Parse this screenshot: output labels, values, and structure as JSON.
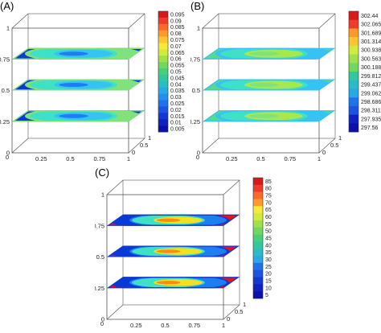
{
  "panels": [
    {
      "label": "(A)",
      "colorbar": [
        "0.095",
        "0.09",
        "0.085",
        "0.08",
        "0.075",
        "0.07",
        "0.065",
        "0.06",
        "0.055",
        "0.05",
        "0.045",
        "0.04",
        "0.035",
        "0.03",
        "0.025",
        "0.02",
        "0.015",
        "0.01",
        "0.005"
      ],
      "z_ticks": [
        "1",
        "0.75",
        "0.5",
        "0.25",
        "0"
      ],
      "x_ticks": [
        "0",
        "0.25",
        "0.5",
        "0.75",
        "1"
      ],
      "y_ticks": [
        "0",
        "0.5",
        "1"
      ],
      "slice_palette": [
        "#0a3ad6",
        "#1c7ef0",
        "#36c2f2",
        "#3fe0c8",
        "#7fe27a"
      ]
    },
    {
      "label": "(B)",
      "colorbar": [
        "302.44",
        "302.065",
        "301.689",
        "301.314",
        "300.938",
        "300.563",
        "300.188",
        "299.812",
        "299.437",
        "299.062",
        "298.686",
        "298.311",
        "297.935",
        "297.56"
      ],
      "z_ticks": [
        "1",
        "0.75",
        "0.5",
        "0.25",
        "0"
      ],
      "x_ticks": [
        "0",
        "0.25",
        "0.5",
        "0.75",
        "1"
      ],
      "y_ticks": [
        "0",
        "0.5",
        "1"
      ],
      "slice_palette": [
        "#59d98a",
        "#7fe27a",
        "#a8e84f",
        "#3fe0c8",
        "#36c2f2"
      ]
    },
    {
      "label": "(C)",
      "colorbar": [
        "85",
        "80",
        "75",
        "70",
        "65",
        "60",
        "55",
        "50",
        "45",
        "40",
        "35",
        "30",
        "25",
        "20",
        "15",
        "10",
        "5"
      ],
      "z_ticks": [
        "1",
        "0.75",
        "0.5",
        "0.25",
        "0"
      ],
      "x_ticks": [
        "0",
        "0.25",
        "0.5",
        "0.75",
        "1"
      ],
      "y_ticks": [
        "0",
        "0.5",
        "1"
      ],
      "slice_palette": [
        "#e01818",
        "#ff8c10",
        "#f5e020",
        "#3fe0c8",
        "#1c7ef0",
        "#0a3ad6"
      ]
    }
  ],
  "colors": {
    "box_line": "#555555",
    "background": "#ffffff"
  }
}
